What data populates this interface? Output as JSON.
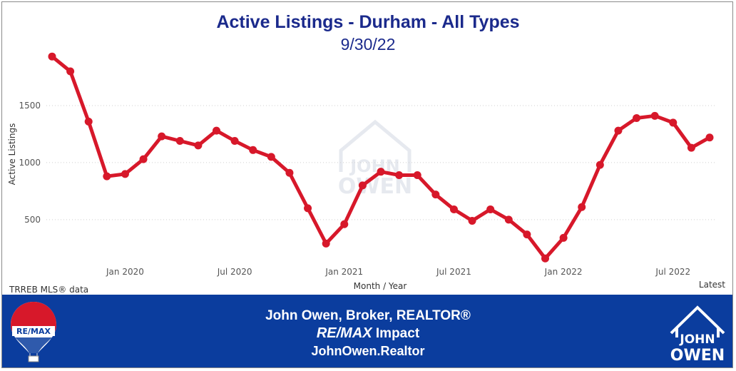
{
  "chart_data": {
    "type": "line",
    "title": "Active Listings - Durham - All Types",
    "subtitle": "9/30/22",
    "xlabel": "Month / Year",
    "ylabel": "Active Listings",
    "x_ticks": [
      "Jan 2020",
      "Jul 2020",
      "Jan 2021",
      "Jul 2021",
      "Jan 2022",
      "Jul 2022"
    ],
    "y_ticks": [
      500,
      1000,
      1500
    ],
    "ylim": [
      130,
      2000
    ],
    "grid": true,
    "line_color": "#d7182a",
    "series": [
      {
        "x": [
          "2019-09",
          "2019-10",
          "2019-11",
          "2019-12",
          "2020-01",
          "2020-02",
          "2020-03",
          "2020-04",
          "2020-05",
          "2020-06",
          "2020-07",
          "2020-08",
          "2020-09",
          "2020-10",
          "2020-11",
          "2020-12",
          "2021-01",
          "2021-02",
          "2021-03",
          "2021-04",
          "2021-05",
          "2021-06",
          "2021-07",
          "2021-08",
          "2021-09",
          "2021-10",
          "2021-11",
          "2021-12",
          "2022-01",
          "2022-02",
          "2022-03",
          "2022-04",
          "2022-05",
          "2022-06",
          "2022-07",
          "2022-08",
          "2022-09"
        ],
        "values": [
          1930,
          1800,
          1360,
          880,
          900,
          1030,
          1230,
          1190,
          1150,
          1280,
          1190,
          1110,
          1050,
          910,
          600,
          290,
          460,
          800,
          920,
          890,
          890,
          720,
          590,
          490,
          590,
          500,
          370,
          160,
          340,
          610,
          980,
          1280,
          1390,
          1410,
          1350,
          1130,
          1220
        ]
      }
    ]
  },
  "notes": {
    "source": "TRREB MLS® data",
    "latest": "Latest"
  },
  "footer": {
    "line1": "John Owen, Broker, REALTOR®",
    "brand": "RE/MAX",
    "brand_suffix": " Impact",
    "website": "JohnOwen.Realtor",
    "balloon_text": "RE/MAX",
    "logo_line1": "JOHN",
    "logo_line2": "OWEN"
  },
  "watermark": {
    "line1": "JOHN",
    "line2": "OWEN"
  },
  "colors": {
    "title": "#1b2a8c",
    "footer_bg": "#0b3d9e",
    "line": "#d7182a"
  }
}
